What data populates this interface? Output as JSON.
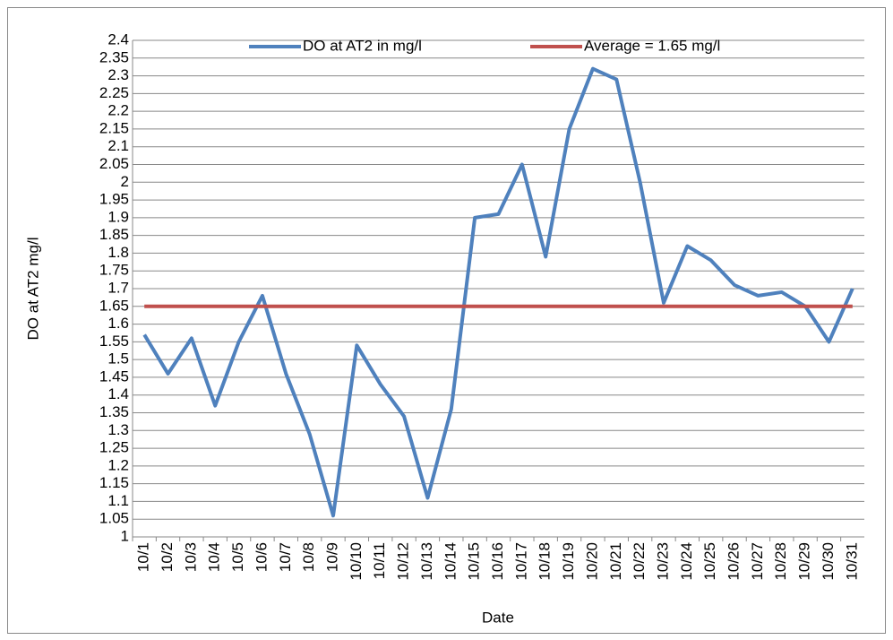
{
  "chart_data": {
    "type": "line",
    "y_label": "DO at AT2 mg/l",
    "x_label": "Date",
    "categories": [
      "10/1",
      "10/2",
      "10/3",
      "10/4",
      "10/5",
      "10/6",
      "10/7",
      "10/8",
      "10/9",
      "10/10",
      "10/11",
      "10/12",
      "10/13",
      "10/14",
      "10/15",
      "10/16",
      "10/17",
      "10/18",
      "10/19",
      "10/20",
      "10/21",
      "10/22",
      "10/23",
      "10/24",
      "10/25",
      "10/26",
      "10/27",
      "10/28",
      "10/29",
      "10/30",
      "10/31"
    ],
    "series": [
      {
        "name": "DO at AT2 in mg/l",
        "color": "#4f81bd",
        "values": [
          1.57,
          1.46,
          1.56,
          1.37,
          1.55,
          1.68,
          1.46,
          1.29,
          1.06,
          1.54,
          1.43,
          1.34,
          1.11,
          1.36,
          1.9,
          1.91,
          2.05,
          1.79,
          2.15,
          2.32,
          2.29,
          2.0,
          1.66,
          1.82,
          1.78,
          1.71,
          1.68,
          1.69,
          1.65,
          1.55,
          1.7
        ]
      },
      {
        "name": "Average = 1.65 mg/l",
        "color": "#c0504d",
        "values": [
          1.65,
          1.65,
          1.65,
          1.65,
          1.65,
          1.65,
          1.65,
          1.65,
          1.65,
          1.65,
          1.65,
          1.65,
          1.65,
          1.65,
          1.65,
          1.65,
          1.65,
          1.65,
          1.65,
          1.65,
          1.65,
          1.65,
          1.65,
          1.65,
          1.65,
          1.65,
          1.65,
          1.65,
          1.65,
          1.65,
          1.65
        ]
      }
    ],
    "ylim": [
      1,
      2.4
    ],
    "yticks": [
      1,
      1.05,
      1.1,
      1.15,
      1.2,
      1.25,
      1.3,
      1.35,
      1.4,
      1.45,
      1.5,
      1.55,
      1.6,
      1.65,
      1.7,
      1.75,
      1.8,
      1.85,
      1.9,
      1.95,
      2,
      2.05,
      2.1,
      2.15,
      2.2,
      2.25,
      2.3,
      2.35,
      2.4
    ],
    "grid": true,
    "legend": "top"
  }
}
